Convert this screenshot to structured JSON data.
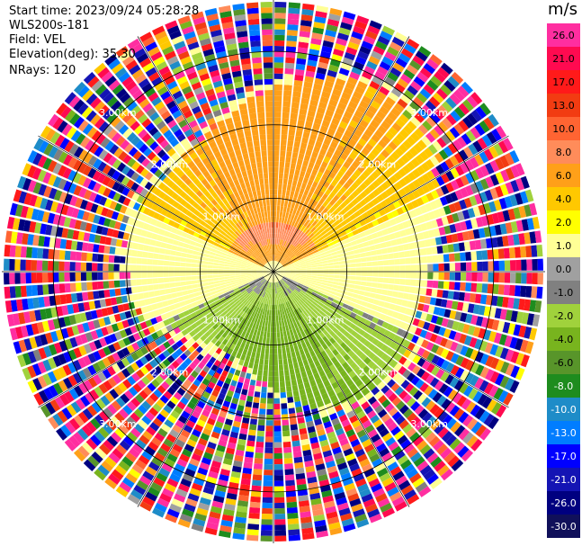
{
  "info": {
    "start_time": "Start time: 2023/09/24 05:28:28",
    "instrument": "WLS200s-181",
    "field": "Field: VEL",
    "elevation": "Elevation(deg): 35.30",
    "nrays": "NRays: 120"
  },
  "chart_data": {
    "type": "heatmap",
    "projection": "polar-ppi",
    "field": "VEL",
    "units": "m/s",
    "n_rays": 120,
    "range_rings_km": [
      1.0,
      2.0,
      3.0
    ],
    "range_ring_labels": [
      "1.00km",
      "2.00km",
      "3.00km"
    ],
    "max_range_km": 3.7,
    "colorbar": {
      "unit": "m/s",
      "ticks": [
        "26.0",
        "21.0",
        "17.0",
        "13.0",
        "10.0",
        "8.0",
        "6.0",
        "4.0",
        "2.0",
        "1.0",
        "0.0",
        "-1.0",
        "-2.0",
        "-4.0",
        "-6.0",
        "-8.0",
        "-10.0",
        "-13.0",
        "-17.0",
        "-21.0",
        "-26.0",
        "-30.0"
      ],
      "colors": [
        "#ff2ea0",
        "#ff0a50",
        "#ff1a1a",
        "#f23c12",
        "#ff6432",
        "#ff8c5a",
        "#ffa019",
        "#ffc800",
        "#ffff00",
        "#ffff96",
        "#a0a0a0",
        "#808080",
        "#a0d23c",
        "#78b41e",
        "#58952a",
        "#1e8c1e",
        "#1e8cc8",
        "#007dff",
        "#0000ff",
        "#1414b4",
        "#000080",
        "#10105a"
      ]
    },
    "grid": true,
    "azimuth_lines_deg": [
      0,
      30,
      60,
      90,
      120,
      150,
      180,
      210,
      240,
      270,
      300,
      330
    ]
  }
}
